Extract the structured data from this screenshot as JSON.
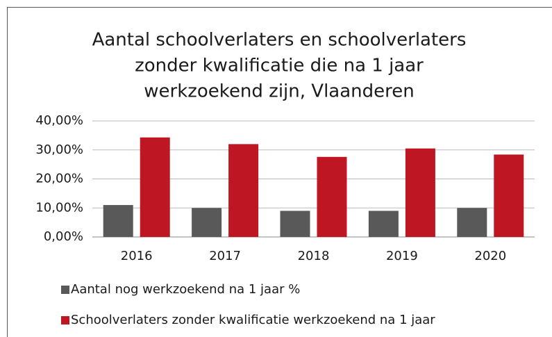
{
  "chart_data": {
    "type": "bar",
    "title": [
      "Aantal schoolverlaters en schoolverlaters",
      "zonder kwalificatie  die na 1 jaar",
      "werkzoekend zijn, Vlaanderen"
    ],
    "categories": [
      "2016",
      "2017",
      "2018",
      "2019",
      "2020"
    ],
    "series": [
      {
        "name": "Aantal nog werkzoekend na 1 jaar %",
        "color": "#595959",
        "values": [
          11,
          10,
          9,
          9,
          10
        ]
      },
      {
        "name": "Schoolverlaters zonder kwalificatie werkzoekend na 1 jaar",
        "color": "#be1622",
        "values": [
          34.3,
          32,
          27.6,
          30.5,
          28.4
        ]
      }
    ],
    "ylim": [
      0,
      40
    ],
    "yticks": [
      {
        "value": 0,
        "label": "0,00%"
      },
      {
        "value": 10,
        "label": "10,00%"
      },
      {
        "value": 20,
        "label": "20,00%"
      },
      {
        "value": 30,
        "label": "30,00%"
      },
      {
        "value": 40,
        "label": "40,00%"
      }
    ],
    "grid": true,
    "legend": "bottom"
  }
}
